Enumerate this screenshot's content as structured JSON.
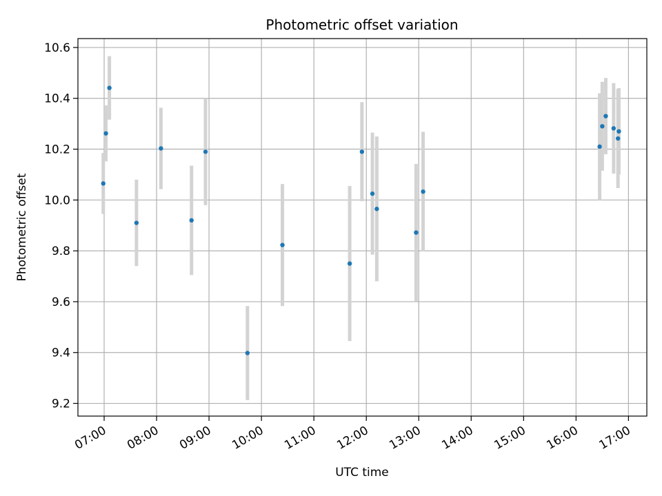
{
  "chart_data": {
    "type": "scatter",
    "title": "Photometric offset variation",
    "xlabel": "UTC time",
    "ylabel": "Photometric offset",
    "grid": true,
    "xlim": [
      "06:30",
      "17:21"
    ],
    "ylim": [
      9.15,
      10.635
    ],
    "x_ticks": [
      "07:00",
      "08:00",
      "09:00",
      "10:00",
      "11:00",
      "12:00",
      "13:00",
      "14:00",
      "15:00",
      "16:00",
      "17:00"
    ],
    "y_ticks": [
      "9.2",
      "9.4",
      "9.6",
      "9.8",
      "10.0",
      "10.2",
      "10.4",
      "10.6"
    ],
    "x_ticks_rotated": true,
    "colors": {
      "point": "#1f77b4",
      "errorbar": "#d3d3d3",
      "grid": "#b0b0b0"
    },
    "points": [
      {
        "time": "06:59",
        "y": 10.065,
        "err": 0.12
      },
      {
        "time": "07:02",
        "y": 10.262,
        "err": 0.11
      },
      {
        "time": "07:06",
        "y": 10.441,
        "err": 0.125
      },
      {
        "time": "07:37",
        "y": 9.91,
        "err": 0.17
      },
      {
        "time": "08:05",
        "y": 10.203,
        "err": 0.16
      },
      {
        "time": "08:40",
        "y": 9.92,
        "err": 0.215
      },
      {
        "time": "08:56",
        "y": 10.19,
        "err": 0.21
      },
      {
        "time": "09:44",
        "y": 9.398,
        "err": 0.185
      },
      {
        "time": "10:24",
        "y": 9.823,
        "err": 0.24
      },
      {
        "time": "11:41",
        "y": 9.75,
        "err": 0.305
      },
      {
        "time": "11:55",
        "y": 10.19,
        "err": 0.195
      },
      {
        "time": "12:07",
        "y": 10.025,
        "err": 0.24
      },
      {
        "time": "12:12",
        "y": 9.965,
        "err": 0.285
      },
      {
        "time": "12:57",
        "y": 9.872,
        "err": 0.27
      },
      {
        "time": "13:05",
        "y": 10.033,
        "err": 0.235
      },
      {
        "time": "16:27",
        "y": 10.21,
        "err": 0.21
      },
      {
        "time": "16:30",
        "y": 10.29,
        "err": 0.175
      },
      {
        "time": "16:34",
        "y": 10.33,
        "err": 0.15
      },
      {
        "time": "16:43",
        "y": 10.282,
        "err": 0.178
      },
      {
        "time": "16:48",
        "y": 10.242,
        "err": 0.195
      },
      {
        "time": "16:49",
        "y": 10.27,
        "err": 0.17
      }
    ]
  }
}
